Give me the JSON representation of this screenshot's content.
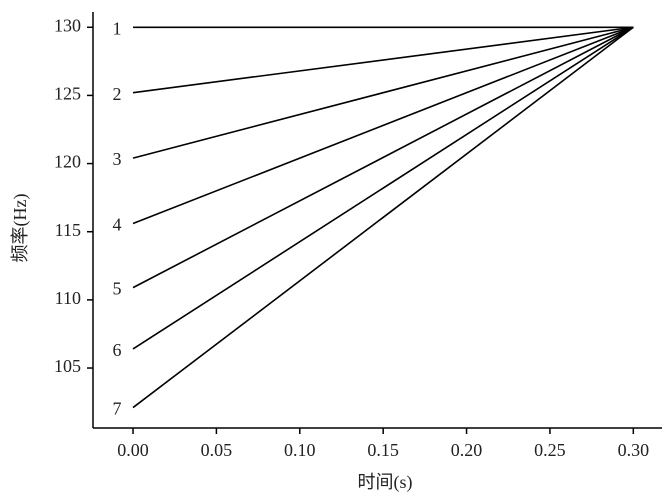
{
  "chart_data": {
    "type": "line",
    "xlabel": "时间(s)",
    "ylabel": "频率(Hz)",
    "x": [
      0,
      0.3
    ],
    "series": [
      {
        "name": "1",
        "color": "#000000",
        "values": [
          130,
          130
        ]
      },
      {
        "name": "2",
        "color": "#000000",
        "values": [
          125.2,
          130
        ]
      },
      {
        "name": "3",
        "color": "#000000",
        "values": [
          120.4,
          130
        ]
      },
      {
        "name": "4",
        "color": "#000000",
        "values": [
          115.6,
          130
        ]
      },
      {
        "name": "5",
        "color": "#000000",
        "values": [
          110.9,
          130
        ]
      },
      {
        "name": "6",
        "color": "#000000",
        "values": [
          106.4,
          130
        ]
      },
      {
        "name": "7",
        "color": "#000000",
        "values": [
          102.1,
          130
        ]
      }
    ],
    "xlim": [
      -0.024,
      0.316
    ],
    "ylim": [
      100.6,
      130.9
    ],
    "xticks": [
      {
        "value": 0,
        "label": "0.00"
      },
      {
        "value": 0.05,
        "label": "0.05"
      },
      {
        "value": 0.1,
        "label": "0.10"
      },
      {
        "value": 0.15,
        "label": "0.15"
      },
      {
        "value": 0.2,
        "label": "0.20"
      },
      {
        "value": 0.25,
        "label": "0.25"
      },
      {
        "value": 0.3,
        "label": "0.30"
      }
    ],
    "yticks": [
      105,
      110,
      115,
      120,
      125,
      130
    ],
    "grid": false
  }
}
